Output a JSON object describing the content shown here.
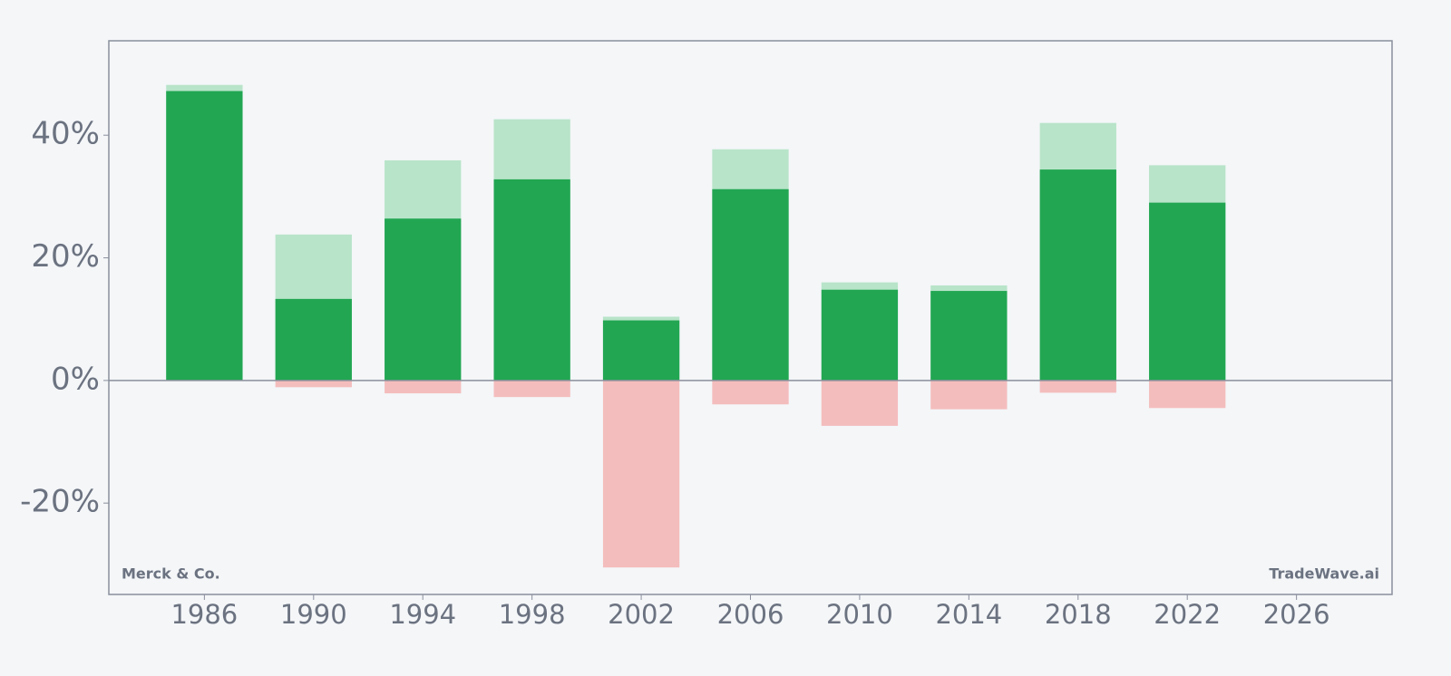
{
  "chart_data": {
    "type": "bar",
    "x": [
      1986,
      1990,
      1994,
      1998,
      2002,
      2006,
      2010,
      2014,
      2018,
      2022
    ],
    "series": [
      {
        "color": "#b8e4c9",
        "values": [
          48.2,
          23.8,
          35.9,
          42.6,
          10.4,
          37.7,
          16.0,
          15.5,
          42.0,
          35.1
        ]
      },
      {
        "color": "#22a652",
        "values": [
          47.2,
          13.3,
          26.4,
          32.8,
          9.8,
          31.2,
          14.8,
          14.6,
          34.4,
          29.0
        ]
      },
      {
        "color": "#f4bdbd",
        "values": [
          0,
          -1.1,
          -2.1,
          -2.7,
          -30.5,
          -3.9,
          -7.4,
          -4.7,
          -2.0,
          -4.5
        ]
      }
    ],
    "bar_width": 2.8,
    "xlim": [
      1982.5,
      2029.5
    ],
    "xticks": [
      1986,
      1990,
      1994,
      1998,
      2002,
      2006,
      2010,
      2014,
      2018,
      2022,
      2026
    ],
    "ylim": [
      -34.9,
      55.4
    ],
    "yticks": [
      {
        "value": -20,
        "label": "-20%"
      },
      {
        "value": 0,
        "label": "0%"
      },
      {
        "value": 20,
        "label": "20%"
      },
      {
        "value": 40,
        "label": "40%"
      }
    ],
    "annotations": [
      "Merck & Co.",
      "TradeWave.ai"
    ]
  }
}
